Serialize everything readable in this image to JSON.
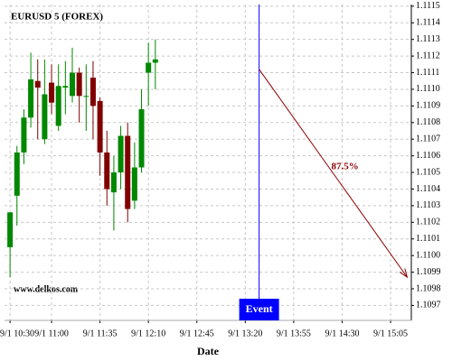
{
  "chart_data": {
    "type": "candlestick",
    "title": "EURUSD 5 (FOREX)",
    "x_label": "Date",
    "watermark": "www.delkos.com",
    "x": [
      "9/1 10:30",
      "9/1 10:35",
      "9/1 10:40",
      "9/1 10:45",
      "9/1 10:50",
      "9/1 10:55",
      "9/1 11:00",
      "9/1 11:05",
      "9/1 11:10",
      "9/1 11:15",
      "9/1 11:20",
      "9/1 11:25",
      "9/1 11:30",
      "9/1 11:35",
      "9/1 11:40",
      "9/1 11:45",
      "9/1 11:50",
      "9/1 11:55",
      "9/1 12:00",
      "9/1 12:05",
      "9/1 12:10",
      "9/1 12:15"
    ],
    "open": [
      1.11005,
      1.11036,
      1.11062,
      1.11083,
      1.11105,
      1.1107,
      1.11104,
      1.11078,
      1.11101,
      1.11096,
      1.1111,
      1.11096,
      1.11107,
      1.11093,
      1.11062,
      1.11038,
      1.1105,
      1.11072,
      1.11033,
      1.11053,
      1.1111,
      1.11116
    ],
    "high": [
      1.11026,
      1.11066,
      1.11088,
      1.11122,
      1.11118,
      1.11118,
      1.11115,
      1.11115,
      1.11117,
      1.11125,
      1.11113,
      1.11115,
      1.11117,
      1.11095,
      1.11075,
      1.1106,
      1.11078,
      1.1108,
      1.11068,
      1.111,
      1.11128,
      1.1113
    ],
    "low": [
      1.10987,
      1.11018,
      1.11055,
      1.11077,
      1.1107,
      1.11067,
      1.11085,
      1.11075,
      1.11085,
      1.11092,
      1.1108,
      1.11075,
      1.1107,
      1.11048,
      1.1103,
      1.11015,
      1.1104,
      1.1102,
      1.11028,
      1.1105,
      1.1109,
      1.111
    ],
    "close": [
      1.11026,
      1.11062,
      1.11083,
      1.11106,
      1.11101,
      1.11097,
      1.11092,
      1.11102,
      1.11102,
      1.1111,
      1.11096,
      1.11096,
      1.1109,
      1.11062,
      1.1104,
      1.1105,
      1.11072,
      1.11028,
      1.11053,
      1.11088,
      1.11116,
      1.11118
    ],
    "up_color": "#008800",
    "down_color": "#800000",
    "xlim": [
      "9/1 10:26",
      "9/1 15:20"
    ],
    "xticks": [
      "9/1 10:30",
      "9/1 11:00",
      "9/1 11:35",
      "9/1 12:10",
      "9/1 12:45",
      "9/1 13:20",
      "9/1 13:55",
      "9/1 14:30",
      "9/1 15:05"
    ],
    "ylim": [
      1.10961,
      1.11151
    ],
    "yticks": [
      1.1097,
      1.1098,
      1.1099,
      {
        "value": 1.11,
        "label": "1.1100"
      },
      1.1101,
      1.1102,
      1.1103,
      1.1104,
      1.1105,
      1.1106,
      1.1107,
      1.1108,
      1.1109,
      {
        "value": 1.111,
        "label": "1.1110"
      },
      1.1111,
      1.1112,
      1.1113,
      1.1114,
      1.1115
    ],
    "grid": true,
    "event": {
      "x": "9/1 13:30",
      "label": "Event",
      "color": "#0000ff"
    },
    "forecast": {
      "x": [
        "9/1 13:30",
        "9/1 15:17"
      ],
      "y": [
        1.11112,
        1.10987
      ],
      "label": "87.5%",
      "color": "#8b0000"
    }
  }
}
